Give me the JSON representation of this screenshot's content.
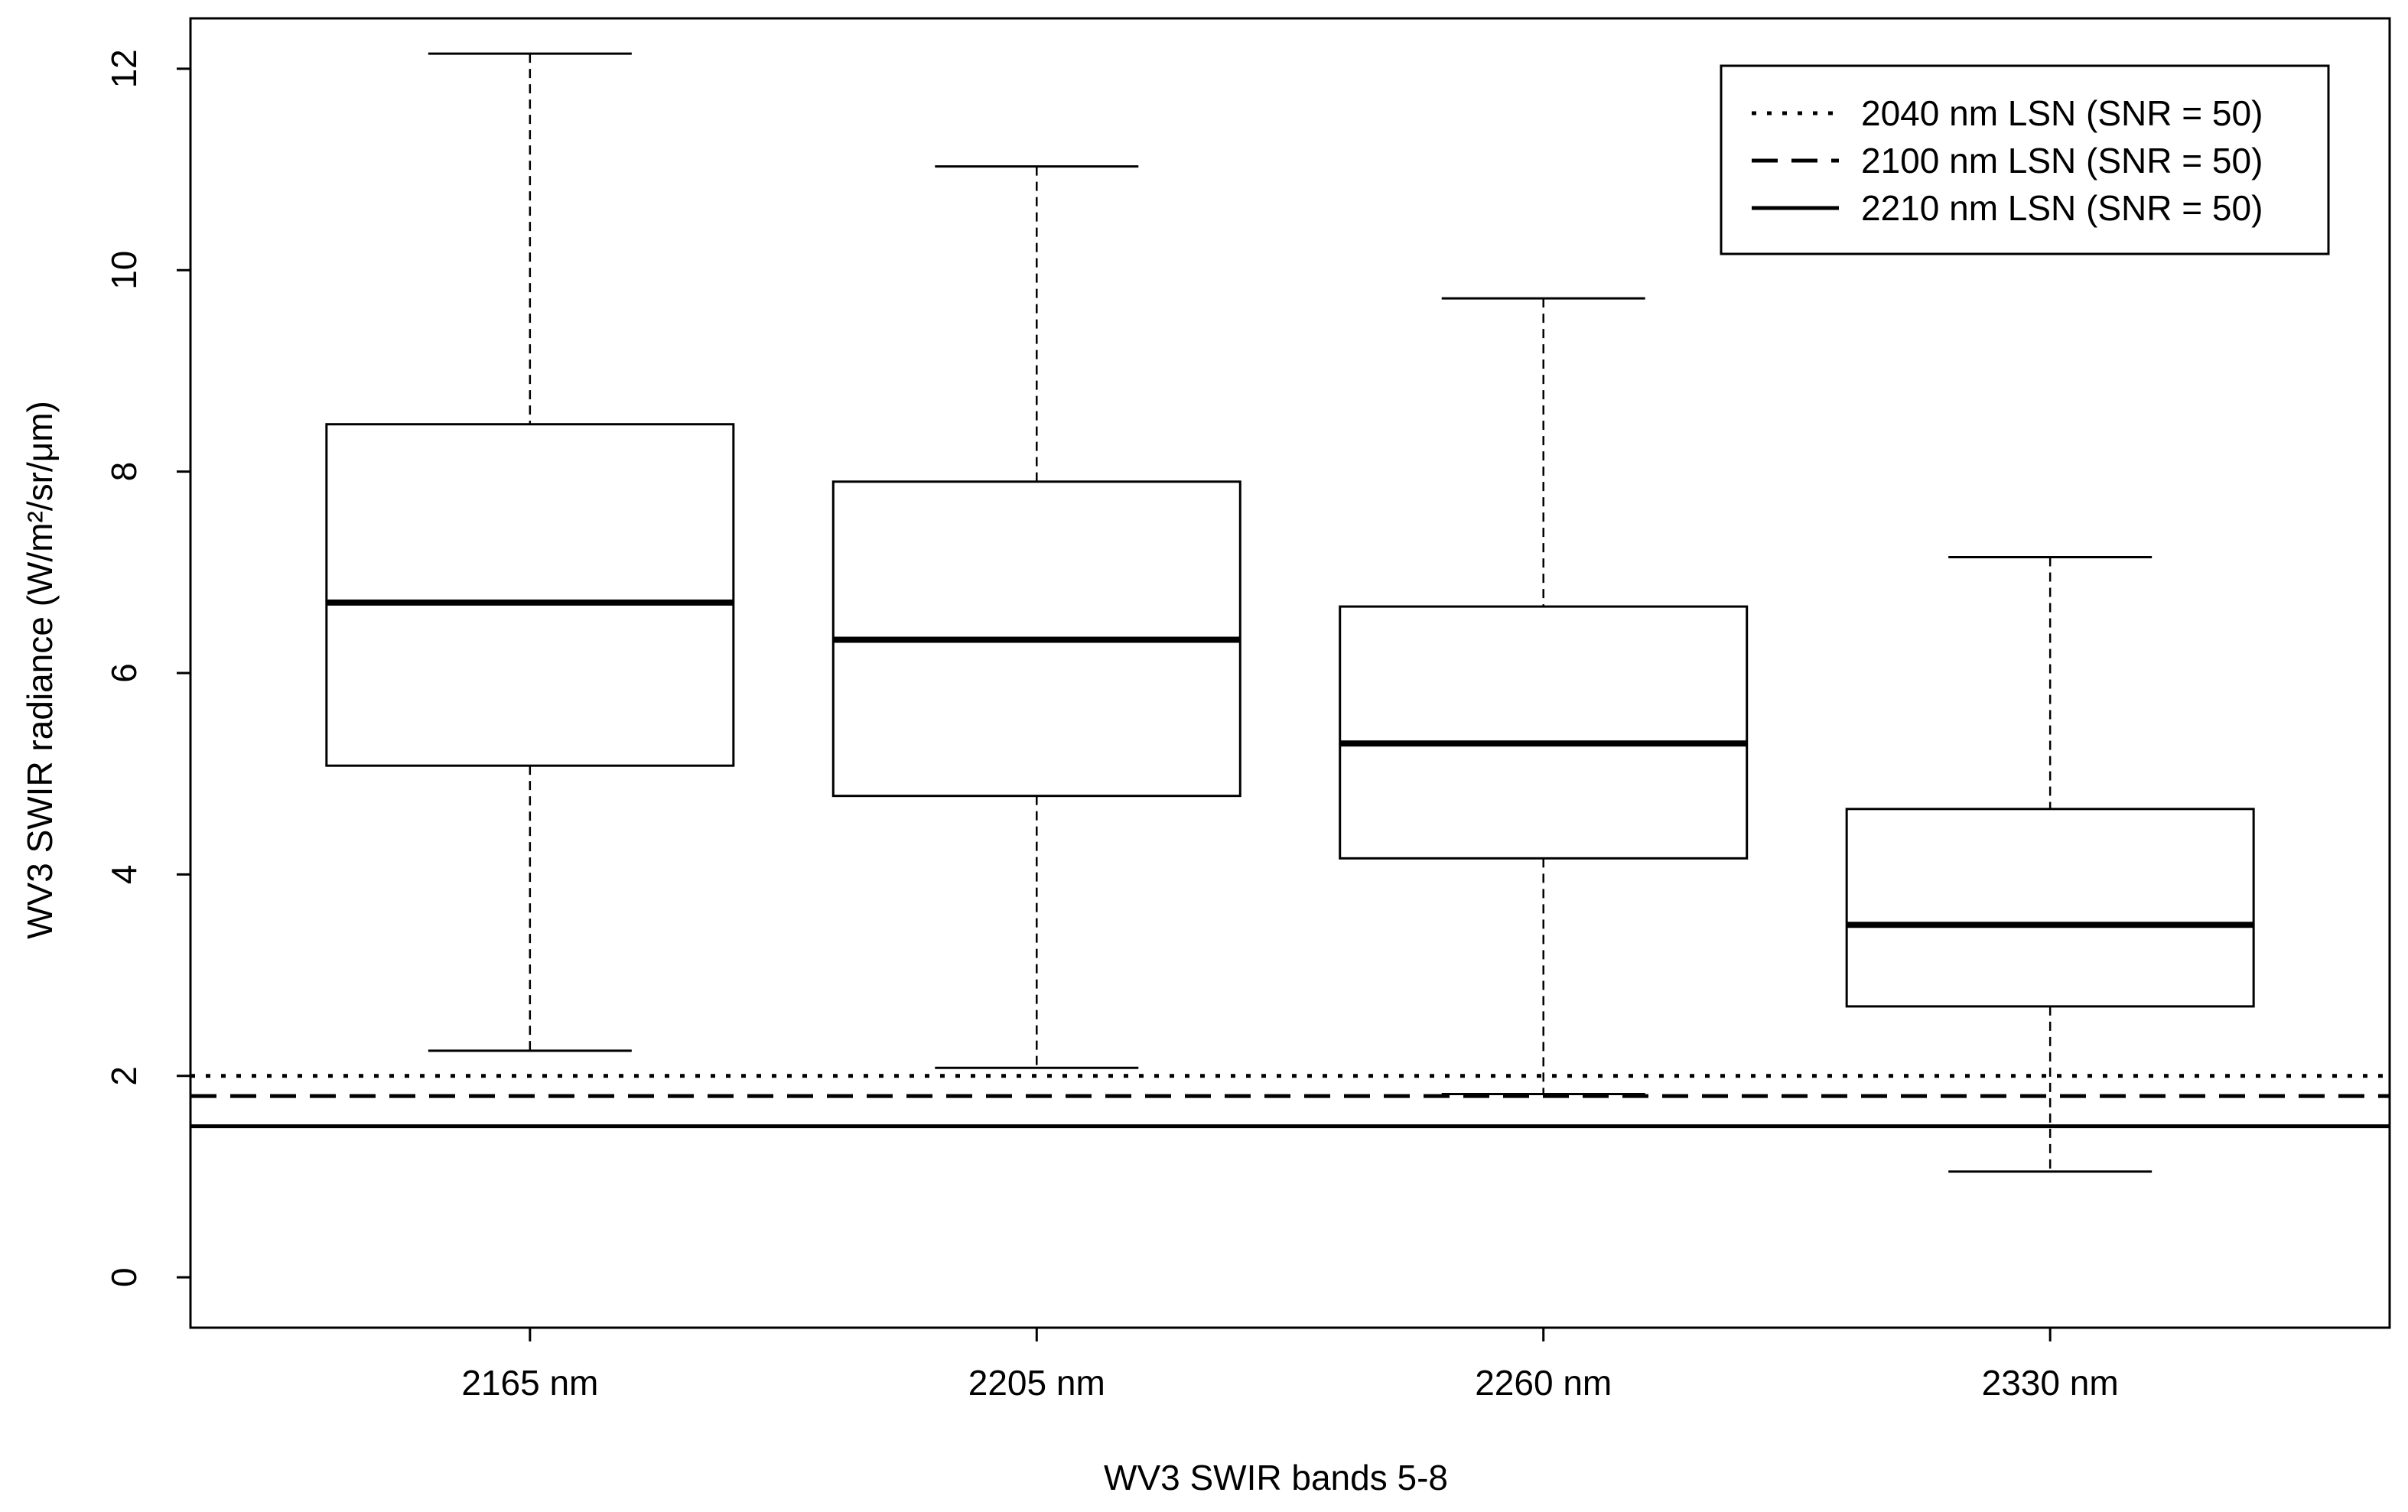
{
  "chart_data": {
    "type": "boxplot",
    "title": "",
    "xlabel": "WV3 SWIR bands 5-8",
    "ylabel": "WV3 SWIR radiance (W/m²/sr/μm)",
    "ylim": [
      -0.5,
      12.5
    ],
    "yticks": [
      "0",
      "2",
      "4",
      "6",
      "8",
      "10",
      "12"
    ],
    "grid": false,
    "legend_position": "top-right",
    "categories": [
      "2165 nm",
      "2205 nm",
      "2260 nm",
      "2330 nm"
    ],
    "boxes": [
      {
        "whisker_low": 2.25,
        "q1": 5.08,
        "median": 6.7,
        "q3": 8.47,
        "whisker_high": 12.15
      },
      {
        "whisker_low": 2.08,
        "q1": 4.78,
        "median": 6.33,
        "q3": 7.9,
        "whisker_high": 11.03
      },
      {
        "whisker_low": 1.82,
        "q1": 4.16,
        "median": 5.3,
        "q3": 6.66,
        "whisker_high": 9.72
      },
      {
        "whisker_low": 1.05,
        "q1": 2.69,
        "median": 3.5,
        "q3": 4.65,
        "whisker_high": 7.15
      }
    ],
    "reference_lines": [
      {
        "name": "2040 nm LSN (SNR = 50)",
        "value": 2.0,
        "style": "dotted"
      },
      {
        "name": "2100 nm LSN (SNR = 50)",
        "value": 1.8,
        "style": "dashed"
      },
      {
        "name": "2210 nm LSN (SNR = 50)",
        "value": 1.5,
        "style": "solid"
      }
    ]
  }
}
